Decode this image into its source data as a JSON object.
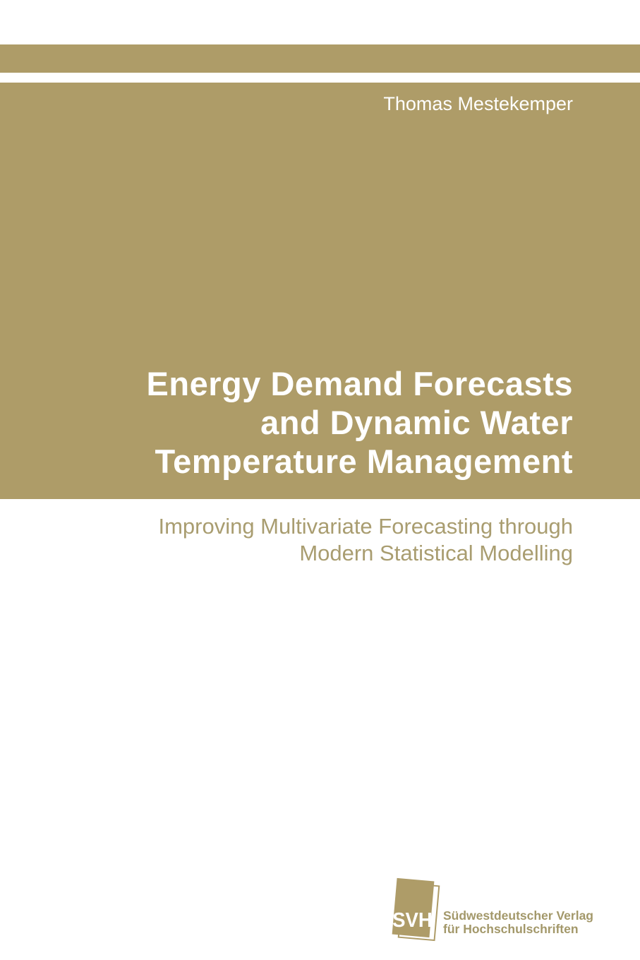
{
  "cover": {
    "author": "Thomas Mestekemper",
    "title": {
      "lines": [
        "Energy Demand Forecasts",
        "and Dynamic Water",
        "Temperature Management"
      ],
      "full": "Energy Demand Forecasts and Dynamic Water Temperature Management"
    },
    "subtitle": {
      "lines": [
        "Improving Multivariate Forecasting through",
        "Modern Statistical Modelling"
      ],
      "full": "Improving Multivariate Forecasting through Modern Statistical Modelling"
    },
    "publisher": {
      "acronym": "SVH",
      "name_lines": [
        "Südwestdeutscher Verlag",
        "für Hochschulschriften"
      ],
      "full_name": "Südwestdeutscher Verlag für Hochschulschriften"
    },
    "colors": {
      "tan_background": "#ae9c68",
      "subtitle_text": "#a99d70",
      "publisher_text": "#a3986a",
      "text_on_tan": "#ffffff",
      "page_background": "#ffffff"
    }
  }
}
